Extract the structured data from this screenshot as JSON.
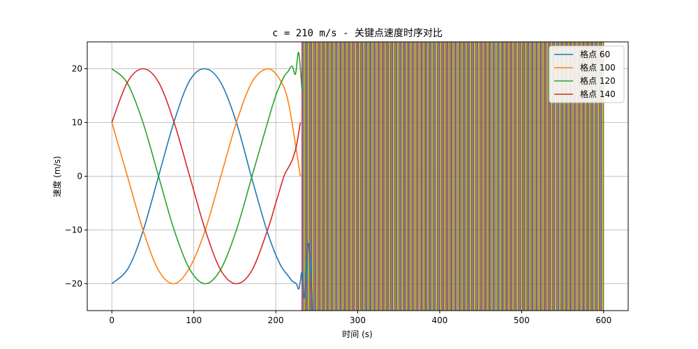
{
  "chart_data": {
    "type": "line",
    "title": "c = 210 m/s - 关键点速度时序对比",
    "xlabel": "时间 (s)",
    "ylabel": "速度 (m/s)",
    "xlim": [
      -30,
      630
    ],
    "ylim": [
      -25,
      25
    ],
    "xticks": [
      0,
      100,
      200,
      300,
      400,
      500,
      600
    ],
    "yticks": [
      -20,
      -10,
      0,
      10,
      20
    ],
    "xtick_labels": [
      "0",
      "100",
      "200",
      "300",
      "400",
      "500",
      "600"
    ],
    "ytick_labels": [
      "−20",
      "−10",
      "0",
      "10",
      "20"
    ],
    "grid": true,
    "legend_position": "top-right",
    "series": [
      {
        "name": "格点 60",
        "color": "#1f77b4",
        "x": [
          0,
          20,
          38,
          57,
          76,
          95,
          114,
          133,
          152,
          171,
          190,
          205,
          215,
          220,
          225,
          228,
          230,
          232,
          235,
          240,
          245
        ],
        "y": [
          -20,
          -17.1,
          -10.2,
          0,
          10.2,
          17.8,
          20,
          17.4,
          10,
          -0.5,
          -10.5,
          -16.3,
          -18.5,
          -19.5,
          -20,
          -21,
          -19.5,
          -18,
          -22.5,
          -12.5,
          -25
        ]
      },
      {
        "name": "格点 100",
        "color": "#ff7f0e",
        "x": [
          0,
          19,
          38,
          57,
          76,
          95,
          114,
          133,
          152,
          171,
          190,
          205,
          215,
          225,
          230
        ],
        "y": [
          10,
          0,
          -10,
          -17.5,
          -20,
          -17,
          -10,
          0,
          10,
          17.5,
          20,
          18,
          14,
          5,
          0
        ]
      },
      {
        "name": "格点 120",
        "color": "#2ca02c",
        "x": [
          0,
          19,
          38,
          57,
          76,
          95,
          114,
          133,
          152,
          171,
          190,
          200,
          210,
          215,
          220,
          224,
          228,
          232
        ],
        "y": [
          20,
          17.3,
          10,
          0,
          -10,
          -17.3,
          -20,
          -17.3,
          -10,
          0,
          10,
          15,
          18.5,
          19.5,
          20.5,
          19,
          23,
          16
        ]
      },
      {
        "name": "格点 140",
        "color": "#d62728",
        "x": [
          0,
          19,
          38,
          57,
          76,
          95,
          114,
          133,
          152,
          171,
          190,
          200,
          210,
          215,
          220,
          225,
          230
        ],
        "y": [
          10,
          17.5,
          20,
          17.5,
          10,
          0,
          -10,
          -17.5,
          -20,
          -17.5,
          -10,
          -5,
          0,
          1.5,
          3,
          5.5,
          10
        ]
      }
    ],
    "oscillation_region": {
      "x_start": 232,
      "x_end": 600
    }
  }
}
